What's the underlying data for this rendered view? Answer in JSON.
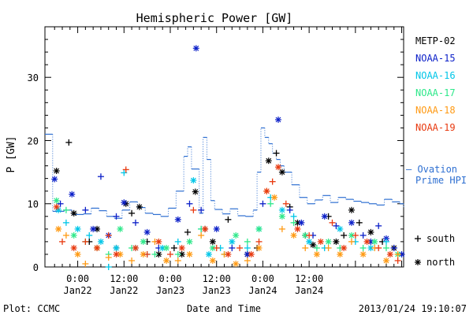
{
  "chart_data": {
    "type": "scatter",
    "title": "Hemispheric Power [GW]",
    "ylabel": "P [GW]",
    "xlabel": "Date and Time",
    "ylim": [
      0,
      38
    ],
    "yticks": [
      0,
      10,
      20,
      30
    ],
    "x_range_hours": [
      -8.5,
      84.5
    ],
    "x_axis_note": "hours from 2013-01-22 00:00 UT",
    "xticks": [
      {
        "x": 0,
        "time": "0:00",
        "date": "Jan22"
      },
      {
        "x": 12,
        "time": "12:00",
        "date": "Jan22"
      },
      {
        "x": 24,
        "time": "0:00",
        "date": "Jan23"
      },
      {
        "x": 36,
        "time": "12:00",
        "date": "Jan23"
      },
      {
        "x": 48,
        "time": "0:00",
        "date": "Jan24"
      },
      {
        "x": 60,
        "time": "12:00",
        "date": "Jan24"
      }
    ],
    "legend_placement": "right",
    "series": [
      {
        "name": "METP-02",
        "color": "#000000",
        "values": [
          [
            -5.5,
            15.2
          ],
          [
            -2.3,
            19.7
          ],
          [
            -1,
            8.5
          ],
          [
            3,
            4
          ],
          [
            5,
            6
          ],
          [
            10,
            3
          ],
          [
            12.5,
            10
          ],
          [
            14,
            8.5
          ],
          [
            16,
            9.5
          ],
          [
            18,
            4
          ],
          [
            21,
            2
          ],
          [
            25,
            3
          ],
          [
            27,
            2
          ],
          [
            28.5,
            5.5
          ],
          [
            30.5,
            11.9
          ],
          [
            33,
            6
          ],
          [
            35,
            4
          ],
          [
            39,
            7.5
          ],
          [
            44,
            2
          ],
          [
            46.5,
            3
          ],
          [
            49.5,
            16.8
          ],
          [
            51.5,
            18
          ],
          [
            53,
            15
          ],
          [
            55,
            9.5
          ],
          [
            57,
            7
          ],
          [
            59,
            5
          ],
          [
            61,
            3.5
          ],
          [
            65,
            8
          ],
          [
            67,
            4
          ],
          [
            69,
            5
          ],
          [
            71,
            9
          ],
          [
            73,
            7
          ],
          [
            76,
            5.5
          ],
          [
            79,
            4
          ],
          [
            82,
            3
          ]
        ]
      },
      {
        "name": "NOAA-15",
        "color": "#0b1fc8",
        "values": [
          [
            -6,
            13.9
          ],
          [
            -4.5,
            10
          ],
          [
            -1.5,
            11.5
          ],
          [
            2,
            9
          ],
          [
            4,
            6
          ],
          [
            6,
            14.3
          ],
          [
            8,
            5
          ],
          [
            10,
            8
          ],
          [
            12,
            10.2
          ],
          [
            15,
            7
          ],
          [
            18,
            5.5
          ],
          [
            21,
            3
          ],
          [
            26,
            7.5
          ],
          [
            29,
            10
          ],
          [
            30.7,
            34.6
          ],
          [
            32,
            9
          ],
          [
            36,
            6
          ],
          [
            40,
            3
          ],
          [
            44,
            2
          ],
          [
            48,
            10
          ],
          [
            52,
            23.3
          ],
          [
            55,
            9
          ],
          [
            58,
            7
          ],
          [
            61,
            5
          ],
          [
            64,
            8
          ],
          [
            67,
            6.5
          ],
          [
            71,
            7
          ],
          [
            74,
            5
          ],
          [
            76,
            4
          ],
          [
            78,
            6.5
          ],
          [
            80,
            4.5
          ],
          [
            82,
            3
          ],
          [
            84,
            2
          ]
        ]
      },
      {
        "name": "NOAA-16",
        "color": "#00c6e8",
        "values": [
          [
            -5,
            9
          ],
          [
            -3,
            7
          ],
          [
            0,
            6
          ],
          [
            3,
            5
          ],
          [
            6,
            4
          ],
          [
            8,
            0
          ],
          [
            10,
            3
          ],
          [
            12,
            14.9
          ],
          [
            15,
            3
          ],
          [
            18,
            2
          ],
          [
            22,
            3
          ],
          [
            26,
            4
          ],
          [
            30,
            13.7
          ],
          [
            32,
            6
          ],
          [
            34,
            2
          ],
          [
            37,
            3
          ],
          [
            40,
            4
          ],
          [
            44,
            3
          ],
          [
            47,
            6
          ],
          [
            50,
            11
          ],
          [
            53,
            9
          ],
          [
            56,
            8
          ],
          [
            60,
            4
          ],
          [
            64,
            3
          ],
          [
            68,
            6
          ],
          [
            72,
            4
          ],
          [
            76,
            3
          ],
          [
            80,
            4
          ]
        ]
      },
      {
        "name": "NOAA-17",
        "color": "#2ee88a",
        "values": [
          [
            -5.5,
            10.5
          ],
          [
            -3,
            9
          ],
          [
            -1,
            5
          ],
          [
            2,
            4
          ],
          [
            5,
            3
          ],
          [
            8,
            2
          ],
          [
            11,
            6
          ],
          [
            14,
            3
          ],
          [
            17,
            4
          ],
          [
            20,
            2
          ],
          [
            23,
            3
          ],
          [
            26,
            2
          ],
          [
            29,
            4
          ],
          [
            32,
            6
          ],
          [
            35,
            3
          ],
          [
            38,
            2
          ],
          [
            41,
            5
          ],
          [
            44,
            4
          ],
          [
            47,
            6
          ],
          [
            50,
            10
          ],
          [
            53,
            8
          ],
          [
            56,
            7
          ],
          [
            59,
            5
          ],
          [
            62,
            3
          ],
          [
            65,
            4
          ],
          [
            68,
            3
          ],
          [
            71,
            5
          ],
          [
            74,
            3
          ],
          [
            77,
            4
          ],
          [
            80,
            3
          ],
          [
            83,
            2
          ]
        ]
      },
      {
        "name": "NOAA-18",
        "color": "#ff9a14",
        "values": [
          [
            -5,
            6
          ],
          [
            -3,
            5
          ],
          [
            0,
            2
          ],
          [
            2,
            0.5
          ],
          [
            5,
            3
          ],
          [
            8,
            1.5
          ],
          [
            11,
            2
          ],
          [
            14,
            1
          ],
          [
            17,
            2
          ],
          [
            20,
            4
          ],
          [
            23,
            1
          ],
          [
            26,
            1
          ],
          [
            29,
            2
          ],
          [
            32,
            5
          ],
          [
            35,
            1
          ],
          [
            38,
            2
          ],
          [
            41,
            0.5
          ],
          [
            44,
            1
          ],
          [
            47,
            3
          ],
          [
            49,
            12
          ],
          [
            51,
            11
          ],
          [
            53,
            6
          ],
          [
            56,
            5
          ],
          [
            59,
            3
          ],
          [
            62,
            2
          ],
          [
            65,
            3
          ],
          [
            68,
            2
          ],
          [
            71,
            4
          ],
          [
            74,
            2
          ],
          [
            77,
            3
          ],
          [
            80,
            1
          ],
          [
            83,
            2
          ]
        ]
      },
      {
        "name": "NOAA-19",
        "color": "#e83a10",
        "values": [
          [
            -5.5,
            9.5
          ],
          [
            -4,
            4
          ],
          [
            -1,
            3
          ],
          [
            2,
            4
          ],
          [
            5,
            3
          ],
          [
            8,
            5
          ],
          [
            10,
            2
          ],
          [
            12.5,
            15.4
          ],
          [
            15,
            3
          ],
          [
            18,
            2
          ],
          [
            21,
            4
          ],
          [
            24,
            2
          ],
          [
            27,
            3
          ],
          [
            30,
            9
          ],
          [
            33,
            6
          ],
          [
            36,
            3
          ],
          [
            39,
            2
          ],
          [
            42,
            3
          ],
          [
            45,
            2
          ],
          [
            47,
            4
          ],
          [
            49,
            12
          ],
          [
            50.5,
            13.5
          ],
          [
            52,
            15.8
          ],
          [
            54,
            10
          ],
          [
            57,
            6
          ],
          [
            60,
            5
          ],
          [
            63,
            4
          ],
          [
            66,
            7
          ],
          [
            69,
            3
          ],
          [
            72,
            5
          ],
          [
            75,
            4
          ],
          [
            78,
            3
          ],
          [
            81,
            2
          ],
          [
            83,
            1
          ]
        ]
      },
      {
        "name": "Ovation Prime HPI",
        "color": "#2e6fd1",
        "values": [
          [
            -8.5,
            21
          ],
          [
            -6.5,
            8.8
          ],
          [
            -3.5,
            9
          ],
          [
            -1.5,
            8.3
          ],
          [
            1.5,
            8.4
          ],
          [
            3.5,
            9.3
          ],
          [
            5.5,
            8.9
          ],
          [
            7.5,
            8
          ],
          [
            9.5,
            7.7
          ],
          [
            11.5,
            9
          ],
          [
            13.5,
            10.3
          ],
          [
            15.5,
            9.4
          ],
          [
            17.5,
            8.5
          ],
          [
            19.5,
            8.3
          ],
          [
            21.5,
            8
          ],
          [
            23.5,
            9.3
          ],
          [
            25.5,
            12
          ],
          [
            27.5,
            17.5
          ],
          [
            28.5,
            19
          ],
          [
            29.5,
            15.5
          ],
          [
            31.5,
            8.5
          ],
          [
            32.5,
            20.5
          ],
          [
            33.5,
            17
          ],
          [
            34.5,
            10.5
          ],
          [
            35.5,
            9.1
          ],
          [
            37.5,
            8.4
          ],
          [
            39.5,
            9.2
          ],
          [
            41.5,
            8.1
          ],
          [
            43.5,
            8
          ],
          [
            45.5,
            9
          ],
          [
            46.5,
            15
          ],
          [
            47.5,
            22
          ],
          [
            48.5,
            20.5
          ],
          [
            49.5,
            19.5
          ],
          [
            50.5,
            18
          ],
          [
            51.5,
            17
          ],
          [
            52.5,
            16
          ],
          [
            53.5,
            15
          ],
          [
            55.5,
            13
          ],
          [
            57.5,
            11
          ],
          [
            59.5,
            10
          ],
          [
            61.5,
            10.6
          ],
          [
            63.5,
            11.3
          ],
          [
            65.5,
            10.2
          ],
          [
            67.5,
            11
          ],
          [
            69.5,
            10.7
          ],
          [
            71.5,
            10.4
          ],
          [
            73.5,
            10.2
          ],
          [
            75.5,
            10
          ],
          [
            77.5,
            9.8
          ],
          [
            79.5,
            10.7
          ],
          [
            81.5,
            10.3
          ],
          [
            83.5,
            10
          ],
          [
            84.5,
            9.5
          ]
        ]
      }
    ],
    "side_legend_markers": [
      {
        "label": "south",
        "symbol": "+"
      },
      {
        "label": "north",
        "symbol": "*"
      }
    ]
  },
  "footer": {
    "plot_label": "Plot: CCMC",
    "timestamp": "2013/01/24 19:10:07"
  },
  "hpi_legend": {
    "label_line1": "– Ovation",
    "label_line2": "Prime HPI"
  }
}
